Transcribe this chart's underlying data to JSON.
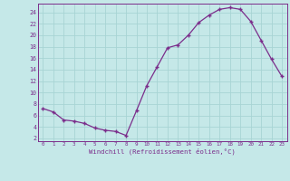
{
  "x": [
    0,
    1,
    2,
    3,
    4,
    5,
    6,
    7,
    8,
    9,
    10,
    11,
    12,
    13,
    14,
    15,
    16,
    17,
    18,
    19,
    20,
    21,
    22,
    23
  ],
  "y": [
    7.2,
    6.6,
    5.2,
    5.0,
    4.6,
    3.8,
    3.4,
    3.2,
    2.5,
    6.8,
    11.2,
    14.5,
    17.8,
    18.3,
    20.0,
    22.2,
    23.5,
    24.5,
    24.8,
    24.5,
    22.4,
    19.1,
    15.8,
    12.8
  ],
  "line_color": "#7b2d8b",
  "marker": "+",
  "bg_color": "#c5e8e8",
  "grid_color": "#a8d4d4",
  "xlabel": "Windchill (Refroidissement éolien,°C)",
  "xlim": [
    -0.5,
    23.5
  ],
  "ylim": [
    1.5,
    25.5
  ],
  "xticks": [
    0,
    1,
    2,
    3,
    4,
    5,
    6,
    7,
    8,
    9,
    10,
    11,
    12,
    13,
    14,
    15,
    16,
    17,
    18,
    19,
    20,
    21,
    22,
    23
  ],
  "yticks": [
    2,
    4,
    6,
    8,
    10,
    12,
    14,
    16,
    18,
    20,
    22,
    24
  ],
  "xlabel_color": "#7b2d8b",
  "tick_color": "#7b2d8b",
  "spine_color": "#7b2d8b"
}
